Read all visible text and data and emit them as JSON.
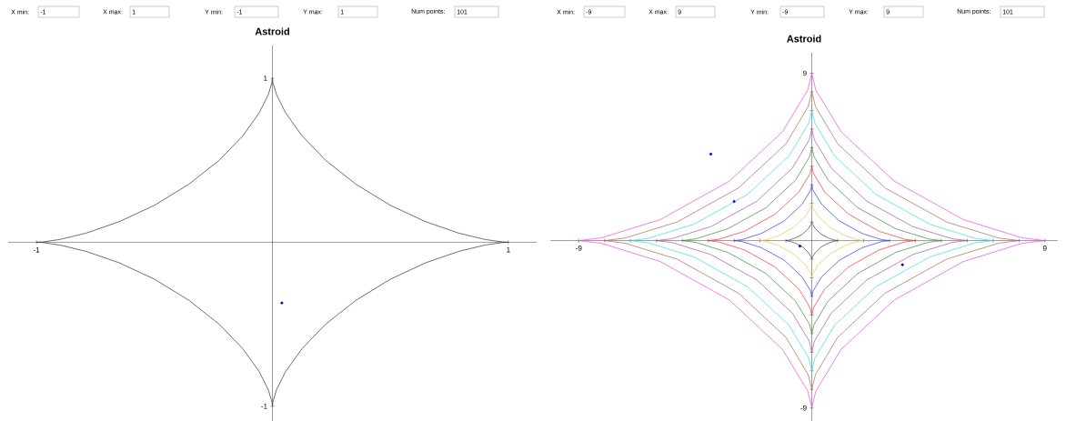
{
  "chart_data": [
    {
      "type": "line",
      "title": "Astroid",
      "xlim": [
        -1.12,
        1.12
      ],
      "ylim": [
        -1.09,
        1.2
      ],
      "xticks": [
        -1,
        1
      ],
      "yticks": [
        -1,
        1
      ],
      "marker": "none",
      "line_style": "solid",
      "annotations": [
        "X min:",
        "-1",
        "X max:",
        "1",
        "Y min:",
        "-1",
        "Y max:",
        "1",
        "Num points:",
        "101"
      ],
      "series": [
        {
          "color": "#333333",
          "x": [
            -1,
            -0.974,
            -0.901,
            -0.789,
            -0.65,
            -0.499,
            -0.354,
            -0.226,
            -0.125,
            -0.056,
            -0.017,
            -0.002,
            0,
            0.002,
            0.017,
            0.056,
            0.125,
            0.226,
            0.354,
            0.499,
            0.65,
            0.789,
            0.901,
            0.974,
            1
          ],
          "values": [
            0,
            0.002,
            0.017,
            0.056,
            0.125,
            0.226,
            0.354,
            0.499,
            0.65,
            0.789,
            0.901,
            0.974,
            1,
            0.974,
            0.901,
            0.789,
            0.65,
            0.499,
            0.354,
            0.226,
            0.125,
            0.056,
            0.017,
            0.002,
            0
          ]
        },
        {
          "color": "#333333",
          "x": [
            -1,
            -0.974,
            -0.901,
            -0.789,
            -0.65,
            -0.499,
            -0.354,
            -0.226,
            -0.125,
            -0.056,
            -0.017,
            -0.002,
            0,
            0.002,
            0.017,
            0.056,
            0.125,
            0.226,
            0.354,
            0.499,
            0.65,
            0.789,
            0.901,
            0.974,
            1
          ],
          "values": [
            0,
            -0.002,
            -0.017,
            -0.056,
            -0.125,
            -0.226,
            -0.354,
            -0.499,
            -0.65,
            -0.789,
            -0.901,
            -0.974,
            -1,
            -0.974,
            -0.901,
            -0.789,
            -0.65,
            -0.499,
            -0.354,
            -0.226,
            -0.125,
            -0.056,
            -0.017,
            -0.002,
            0
          ]
        },
        {
          "type": "scatter",
          "marker": "circle",
          "color": "#0000cc",
          "x": [
            0.04
          ],
          "values": [
            -0.37
          ]
        }
      ]
    },
    {
      "type": "line",
      "title": "Astroid",
      "xlim": [
        -10.1,
        9.5
      ],
      "ylim": [
        -9.7,
        10.1
      ],
      "xticks": [
        -9,
        {
          "value": -8,
          "label": null
        },
        {
          "value": -7,
          "label": null
        },
        {
          "value": -6,
          "label": null
        },
        {
          "value": -5,
          "label": null
        },
        {
          "value": -4,
          "label": null
        },
        {
          "value": -3,
          "label": null
        },
        {
          "value": -2,
          "label": null
        },
        {
          "value": -1,
          "label": null
        },
        {
          "value": 1,
          "label": null
        },
        {
          "value": 2,
          "label": null
        },
        {
          "value": 3,
          "label": null
        },
        {
          "value": 4,
          "label": null
        },
        {
          "value": 5,
          "label": null
        },
        {
          "value": 6,
          "label": null
        },
        {
          "value": 7,
          "label": null
        },
        {
          "value": 8,
          "label": null
        },
        9
      ],
      "yticks": [
        -9,
        {
          "value": -8,
          "label": null
        },
        {
          "value": -7,
          "label": null
        },
        {
          "value": -6,
          "label": null
        },
        {
          "value": -5,
          "label": null
        },
        {
          "value": -4,
          "label": null
        },
        {
          "value": -3,
          "label": null
        },
        {
          "value": -2,
          "label": null
        },
        {
          "value": -1,
          "label": null
        },
        {
          "value": 1,
          "label": null
        },
        {
          "value": 2,
          "label": null
        },
        {
          "value": 3,
          "label": null
        },
        {
          "value": 4,
          "label": null
        },
        {
          "value": 5,
          "label": null
        },
        {
          "value": 6,
          "label": null
        },
        {
          "value": 7,
          "label": null
        },
        {
          "value": 8,
          "label": null
        },
        9
      ],
      "marker": "none",
      "line_style": "solid",
      "annotations": [
        "X min:",
        "-9",
        "X max:",
        "9",
        "Y min:",
        "-9",
        "Y max:",
        "9",
        "Num points:",
        "101"
      ],
      "series": [
        {
          "color": "#444444",
          "x": [
            -1,
            -0.9,
            -0.65,
            -0.35,
            -0.13,
            -0.02,
            0,
            0.02,
            0.13,
            0.35,
            0.65,
            0.9,
            1
          ],
          "values": [
            0,
            0.02,
            0.13,
            0.35,
            0.65,
            0.9,
            1,
            0.9,
            0.65,
            0.35,
            0.13,
            0.02,
            0
          ]
        },
        {
          "color": "#444444",
          "x": [
            -1,
            -0.9,
            -0.65,
            -0.35,
            -0.13,
            -0.02,
            0,
            0.02,
            0.13,
            0.35,
            0.65,
            0.9,
            1
          ],
          "values": [
            0,
            -0.02,
            -0.13,
            -0.35,
            -0.65,
            -0.9,
            -1,
            -0.9,
            -0.65,
            -0.35,
            -0.13,
            -0.02,
            0
          ]
        },
        {
          "color": "#f0c040",
          "x": [
            -2,
            -1.8,
            -1.3,
            -0.71,
            -0.25,
            -0.03,
            0,
            0.03,
            0.25,
            0.71,
            1.3,
            1.8,
            2
          ],
          "values": [
            0,
            0.03,
            0.25,
            0.71,
            1.3,
            1.8,
            2,
            1.8,
            1.3,
            0.71,
            0.25,
            0.03,
            0
          ]
        },
        {
          "color": "#f0c040",
          "x": [
            -2,
            -1.8,
            -1.3,
            -0.71,
            -0.25,
            -0.03,
            0,
            0.03,
            0.25,
            0.71,
            1.3,
            1.8,
            2
          ],
          "values": [
            0,
            -0.03,
            -0.25,
            -0.71,
            -1.3,
            -1.8,
            -2,
            -1.8,
            -1.3,
            -0.71,
            -0.25,
            -0.03,
            0
          ]
        },
        {
          "color": "#3333ee",
          "x": [
            -3,
            -2.7,
            -1.95,
            -1.06,
            -0.38,
            -0.05,
            0,
            0.05,
            0.38,
            1.06,
            1.95,
            2.7,
            3
          ],
          "values": [
            0,
            0.05,
            0.38,
            1.06,
            1.95,
            2.7,
            3,
            2.7,
            1.95,
            1.06,
            0.38,
            0.05,
            0
          ]
        },
        {
          "color": "#3333ee",
          "x": [
            -3,
            -2.7,
            -1.95,
            -1.06,
            -0.38,
            -0.05,
            0,
            0.05,
            0.38,
            1.06,
            1.95,
            2.7,
            3
          ],
          "values": [
            0,
            -0.05,
            -0.38,
            -1.06,
            -1.95,
            -2.7,
            -3,
            -2.7,
            -1.95,
            -1.06,
            -0.38,
            -0.05,
            0
          ]
        },
        {
          "color": "#ee3333",
          "x": [
            -4,
            -3.6,
            -2.6,
            -1.42,
            -0.5,
            -0.07,
            0,
            0.07,
            0.5,
            1.42,
            2.6,
            3.6,
            4
          ],
          "values": [
            0,
            0.07,
            0.5,
            1.42,
            2.6,
            3.6,
            4,
            3.6,
            2.6,
            1.42,
            0.5,
            0.07,
            0
          ]
        },
        {
          "color": "#ee3333",
          "x": [
            -4,
            -3.6,
            -2.6,
            -1.42,
            -0.5,
            -0.07,
            0,
            0.07,
            0.5,
            1.42,
            2.6,
            3.6,
            4
          ],
          "values": [
            0,
            -0.07,
            -0.5,
            -1.42,
            -2.6,
            -3.6,
            -4,
            -3.6,
            -2.6,
            -1.42,
            -0.5,
            -0.07,
            0
          ]
        },
        {
          "color": "#338833",
          "x": [
            -5,
            -4.5,
            -3.25,
            -1.77,
            -0.63,
            -0.09,
            0,
            0.09,
            0.63,
            1.77,
            3.25,
            4.5,
            5
          ],
          "values": [
            0,
            0.09,
            0.63,
            1.77,
            3.25,
            4.5,
            5,
            4.5,
            3.25,
            1.77,
            0.63,
            0.09,
            0
          ]
        },
        {
          "color": "#338833",
          "x": [
            -5,
            -4.5,
            -3.25,
            -1.77,
            -0.63,
            -0.09,
            0,
            0.09,
            0.63,
            1.77,
            3.25,
            4.5,
            5
          ],
          "values": [
            0,
            -0.09,
            -0.63,
            -1.77,
            -3.25,
            -4.5,
            -5,
            -4.5,
            -3.25,
            -1.77,
            -0.63,
            -0.09,
            0
          ]
        },
        {
          "color": "#9955aa",
          "x": [
            -6,
            -5.41,
            -3.9,
            -2.12,
            -0.75,
            -0.1,
            0,
            0.1,
            0.75,
            2.12,
            3.9,
            5.41,
            6
          ],
          "values": [
            0,
            0.1,
            0.75,
            2.12,
            3.9,
            5.41,
            6,
            5.41,
            3.9,
            2.12,
            0.75,
            0.1,
            0
          ]
        },
        {
          "color": "#9955aa",
          "x": [
            -6,
            -5.41,
            -3.9,
            -2.12,
            -0.75,
            -0.1,
            0,
            0.1,
            0.75,
            2.12,
            3.9,
            5.41,
            6
          ],
          "values": [
            0,
            -0.1,
            -0.75,
            -2.12,
            -3.9,
            -5.41,
            -6,
            -5.41,
            -3.9,
            -2.12,
            -0.75,
            -0.1,
            0
          ]
        },
        {
          "color": "#33dddd",
          "x": [
            -7,
            -6.31,
            -4.55,
            -2.48,
            -0.88,
            -0.12,
            0,
            0.12,
            0.88,
            2.48,
            4.55,
            6.31,
            7
          ],
          "values": [
            0,
            0.12,
            0.88,
            2.48,
            4.55,
            6.31,
            7,
            6.31,
            4.55,
            2.48,
            0.88,
            0.12,
            0
          ]
        },
        {
          "color": "#33dddd",
          "x": [
            -7,
            -6.31,
            -4.55,
            -2.48,
            -0.88,
            -0.12,
            0,
            0.12,
            0.88,
            2.48,
            4.55,
            6.31,
            7
          ],
          "values": [
            0,
            -0.12,
            -0.88,
            -2.48,
            -4.55,
            -6.31,
            -7,
            -6.31,
            -4.55,
            -2.48,
            -0.88,
            -0.12,
            0
          ]
        },
        {
          "color": "#aa6655",
          "x": [
            -8,
            -7.21,
            -5.2,
            -2.83,
            -1,
            -0.14,
            0,
            0.14,
            1,
            2.83,
            5.2,
            7.21,
            8
          ],
          "values": [
            0,
            0.14,
            1,
            2.83,
            5.2,
            7.21,
            8,
            7.21,
            5.2,
            2.83,
            1,
            0.14,
            0
          ]
        },
        {
          "color": "#aa6655",
          "x": [
            -8,
            -7.21,
            -5.2,
            -2.83,
            -1,
            -0.14,
            0,
            0.14,
            1,
            2.83,
            5.2,
            7.21,
            8
          ],
          "values": [
            0,
            -0.14,
            -1,
            -2.83,
            -5.2,
            -7.21,
            -8,
            -7.21,
            -5.2,
            -2.83,
            -1,
            -0.14,
            0
          ]
        },
        {
          "color": "#ee44ee",
          "x": [
            -9,
            -8.11,
            -5.85,
            -3.19,
            -1.13,
            -0.15,
            0,
            0.15,
            1.13,
            3.19,
            5.85,
            8.11,
            9
          ],
          "values": [
            0,
            0.15,
            1.13,
            3.19,
            5.85,
            8.11,
            9,
            8.11,
            5.85,
            3.19,
            1.13,
            0.15,
            0
          ]
        },
        {
          "color": "#ee44ee",
          "x": [
            -9,
            -8.11,
            -5.85,
            -3.19,
            -1.13,
            -0.15,
            0,
            0.15,
            1.13,
            3.19,
            5.85,
            8.11,
            9
          ],
          "values": [
            0,
            -0.15,
            -1.13,
            -3.19,
            -5.85,
            -8.11,
            -9,
            -8.11,
            -5.85,
            -3.19,
            -1.13,
            -0.15,
            0
          ]
        },
        {
          "type": "scatter",
          "marker": "circle",
          "color": "#0000cc",
          "x": [
            -3.9,
            -3.0,
            -0.46,
            3.5
          ],
          "values": [
            4.65,
            2.1,
            -0.3,
            -1.3
          ]
        }
      ]
    }
  ]
}
